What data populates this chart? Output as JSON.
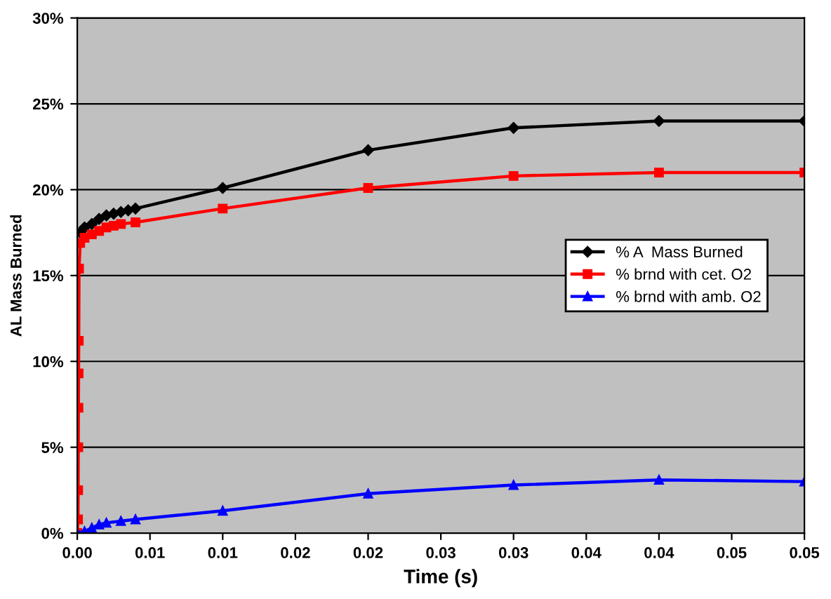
{
  "chart_data": {
    "type": "line",
    "xlabel": "Time (s)",
    "ylabel": "AL Mass Burned",
    "xlim": [
      0,
      0.05
    ],
    "ylim": [
      0,
      30
    ],
    "xticks": [
      {
        "value": 0,
        "label": "0.00"
      },
      {
        "value": 0.005,
        "label": "0.01"
      },
      {
        "value": 0.01,
        "label": "0.01"
      },
      {
        "value": 0.015,
        "label": "0.02"
      },
      {
        "value": 0.02,
        "label": "0.02"
      },
      {
        "value": 0.025,
        "label": "0.03"
      },
      {
        "value": 0.03,
        "label": "0.03"
      },
      {
        "value": 0.035,
        "label": "0.04"
      },
      {
        "value": 0.04,
        "label": "0.04"
      },
      {
        "value": 0.045,
        "label": "0.05"
      },
      {
        "value": 0.05,
        "label": "0.05"
      }
    ],
    "yticks": [
      {
        "value": 0,
        "label": "0%"
      },
      {
        "value": 5,
        "label": "5%"
      },
      {
        "value": 10,
        "label": "10%"
      },
      {
        "value": 15,
        "label": "15%"
      },
      {
        "value": 20,
        "label": "20%"
      },
      {
        "value": 25,
        "label": "25%"
      },
      {
        "value": 30,
        "label": "30%"
      }
    ],
    "grid": "y",
    "legend": "center right",
    "line_style": "solid",
    "series": [
      {
        "name": "% A  Mass Burned",
        "color": "#000000",
        "marker": "diamond",
        "x": [
          0.0002,
          0.0005,
          0.001,
          0.0015,
          0.002,
          0.0025,
          0.003,
          0.0035,
          0.004,
          0.01,
          0.02,
          0.03,
          0.04,
          0.05
        ],
        "values": [
          17.5,
          17.8,
          18.0,
          18.3,
          18.5,
          18.6,
          18.7,
          18.8,
          18.9,
          20.1,
          22.3,
          23.6,
          24.0,
          24.0
        ]
      },
      {
        "name": "% brnd with cet. O2",
        "color": "#ff0000",
        "marker": "square",
        "x": [
          0,
          5e-05,
          6e-05,
          7e-05,
          8e-05,
          9e-05,
          0.0001,
          0.00012,
          0.0002,
          0.0005,
          0.001,
          0.0015,
          0.002,
          0.0025,
          0.003,
          0.004,
          0.01,
          0.02,
          0.03,
          0.04,
          0.05
        ],
        "values": [
          0,
          0.8,
          2.5,
          5.0,
          7.3,
          9.3,
          11.2,
          15.4,
          16.9,
          17.2,
          17.4,
          17.6,
          17.8,
          17.9,
          18.0,
          18.1,
          18.9,
          20.1,
          20.8,
          21.0,
          21.0
        ]
      },
      {
        "name": "% brnd with amb. O2",
        "color": "#0000ff",
        "marker": "triangle",
        "x": [
          0,
          0.0005,
          0.001,
          0.0015,
          0.002,
          0.003,
          0.004,
          0.01,
          0.02,
          0.03,
          0.04,
          0.05
        ],
        "values": [
          0,
          0.1,
          0.3,
          0.5,
          0.6,
          0.7,
          0.8,
          1.3,
          2.3,
          2.8,
          3.1,
          3.0
        ]
      }
    ]
  }
}
